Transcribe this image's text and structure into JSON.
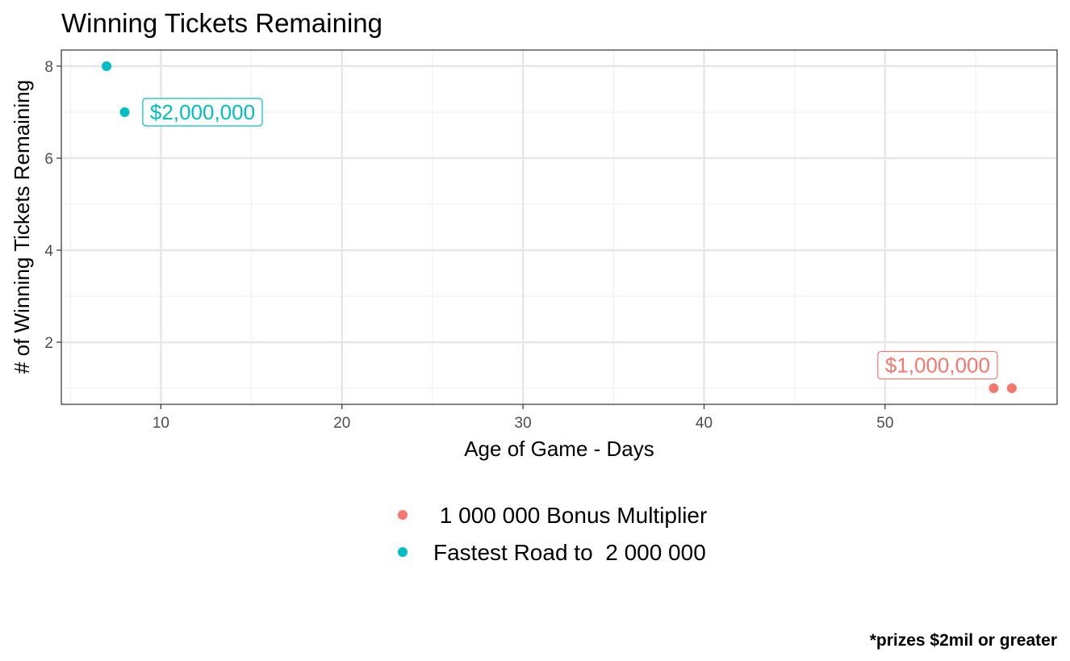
{
  "chart_data": {
    "type": "scatter",
    "title": "Winning Tickets Remaining",
    "xlabel": "Age of Game - Days",
    "ylabel": "# of Winning Tickets Remaining",
    "xlim": [
      4.5,
      59.5
    ],
    "ylim": [
      0.65,
      8.35
    ],
    "x_ticks": [
      10,
      20,
      30,
      40,
      50
    ],
    "y_ticks": [
      2,
      4,
      6,
      8
    ],
    "grid": true,
    "legend_position": "bottom",
    "series": [
      {
        "name": " 1 000 000 Bonus Multiplier",
        "color": "#F8766D",
        "points": [
          {
            "x": 56,
            "y": 1
          },
          {
            "x": 57,
            "y": 1
          }
        ],
        "annotation": {
          "text": "$1,000,000",
          "x": 52.9,
          "y": 1.5
        }
      },
      {
        "name": "Fastest Road to  2 000 000",
        "color": "#00BFC4",
        "points": [
          {
            "x": 7,
            "y": 8
          },
          {
            "x": 8,
            "y": 7
          }
        ],
        "annotation": {
          "text": "$2,000,000",
          "x": 12.3,
          "y": 7
        }
      }
    ],
    "caption": "*prizes $2mil or greater"
  }
}
